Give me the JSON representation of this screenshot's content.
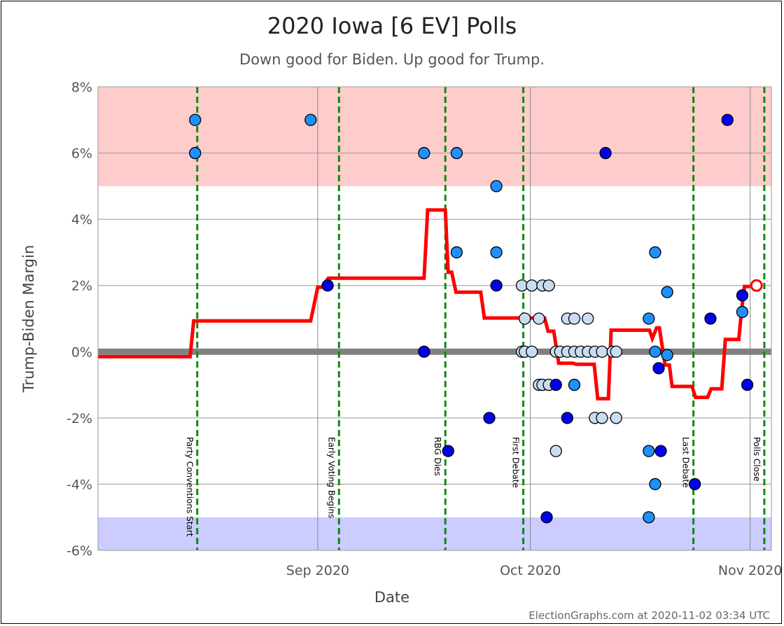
{
  "chart_data": {
    "type": "scatter",
    "title": "2020 Iowa [6 EV] Polls",
    "subtitle": "Down good for Biden. Up good for Trump.",
    "xlabel": "Date",
    "ylabel": "Trump-Biden Margin",
    "credit": "ElectionGraphs.com at 2020-11-02 03:34 UTC",
    "xlim": [
      "2020-08-01",
      "2020-11-04"
    ],
    "ylim": [
      -6,
      8
    ],
    "y_ticks": [
      {
        "value": 8,
        "label": "8%"
      },
      {
        "value": 6,
        "label": "6%"
      },
      {
        "value": 4,
        "label": "4%"
      },
      {
        "value": 2,
        "label": "2%"
      },
      {
        "value": 0,
        "label": "0%"
      },
      {
        "value": -2,
        "label": "-2%"
      },
      {
        "value": -4,
        "label": "-4%"
      },
      {
        "value": -6,
        "label": "-6%"
      }
    ],
    "x_ticks": [
      {
        "date": "2020-09-01",
        "label": "Sep 2020"
      },
      {
        "date": "2020-10-01",
        "label": "Oct 2020"
      },
      {
        "date": "2020-11-01",
        "label": "Nov 2020"
      }
    ],
    "bands": [
      {
        "from": 5,
        "to": 8,
        "color": "#ffcccc"
      },
      {
        "from": -6,
        "to": -5,
        "color": "#ccccff"
      }
    ],
    "events": [
      {
        "date": "2020-08-15",
        "label": "Party Conventions Start"
      },
      {
        "date": "2020-09-04",
        "label": "Early Voting Begins"
      },
      {
        "date": "2020-09-19",
        "label": "RBG Dies"
      },
      {
        "date": "2020-09-30",
        "label": "First Debate"
      },
      {
        "date": "2020-10-24",
        "label": "Last Debate"
      },
      {
        "date": "2020-11-03",
        "label": "Polls Close"
      }
    ],
    "average_line": {
      "color": "#ff0000",
      "points": [
        [
          "2020-08-01",
          -0.15
        ],
        [
          "2020-08-14",
          -0.15
        ],
        [
          "2020-08-14.5",
          0.93
        ],
        [
          "2020-08-31",
          0.93
        ],
        [
          "2020-09-01",
          1.95
        ],
        [
          "2020-09-01.6",
          1.95
        ],
        [
          "2020-09-02.5",
          2.22
        ],
        [
          "2020-09-16",
          2.22
        ],
        [
          "2020-09-16.5",
          4.28
        ],
        [
          "2020-09-19",
          4.28
        ],
        [
          "2020-09-19.4",
          2.4
        ],
        [
          "2020-09-19.9",
          2.4
        ],
        [
          "2020-09-20.5",
          1.8
        ],
        [
          "2020-09-24",
          1.8
        ],
        [
          "2020-09-24.5",
          1.02
        ],
        [
          "2020-10-03",
          1.02
        ],
        [
          "2020-10-03.5",
          0.62
        ],
        [
          "2020-10-04.3",
          0.62
        ],
        [
          "2020-10-05",
          -0.35
        ],
        [
          "2020-10-07",
          -0.35
        ],
        [
          "2020-10-07.5",
          -0.38
        ],
        [
          "2020-10-10",
          -0.38
        ],
        [
          "2020-10-10.5",
          -1.42
        ],
        [
          "2020-10-12",
          -1.42
        ],
        [
          "2020-10-12.4",
          0.65
        ],
        [
          "2020-10-17.8",
          0.65
        ],
        [
          "2020-10-18.2",
          0.4
        ],
        [
          "2020-10-18.8",
          0.72
        ],
        [
          "2020-10-19.2",
          0.72
        ],
        [
          "2020-10-20",
          -0.4
        ],
        [
          "2020-10-20.6",
          -0.4
        ],
        [
          "2020-10-21",
          -1.05
        ],
        [
          "2020-10-23.8",
          -1.05
        ],
        [
          "2020-10-24.3",
          -1.38
        ],
        [
          "2020-10-26",
          -1.38
        ],
        [
          "2020-10-26.5",
          -1.12
        ],
        [
          "2020-10-28",
          -1.12
        ],
        [
          "2020-10-28.5",
          0.37
        ],
        [
          "2020-10-30.4",
          0.37
        ],
        [
          "2020-10-30.8",
          1.27
        ],
        [
          "2020-10-31.2",
          1.97
        ],
        [
          "2020-11-01",
          1.97
        ]
      ],
      "projection": {
        "date": "2020-11-01.9",
        "value": 2.0
      }
    },
    "polls": [
      {
        "date": "2020-08-14.7",
        "value": 7,
        "color": "#1e90ff"
      },
      {
        "date": "2020-08-14.7",
        "value": 6,
        "color": "#1e90ff"
      },
      {
        "date": "2020-08-31.0",
        "value": 7,
        "color": "#1e90ff"
      },
      {
        "date": "2020-09-02.4",
        "value": 2,
        "color": "#0000ee"
      },
      {
        "date": "2020-09-16.0",
        "value": 6,
        "color": "#1e90ff"
      },
      {
        "date": "2020-09-16.0",
        "value": 0,
        "color": "#0000ee"
      },
      {
        "date": "2020-09-19.4",
        "value": -3,
        "color": "#0000ee"
      },
      {
        "date": "2020-09-20.6",
        "value": 6,
        "color": "#1e90ff"
      },
      {
        "date": "2020-09-20.6",
        "value": 3,
        "color": "#1e90ff"
      },
      {
        "date": "2020-09-25.2",
        "value": -2,
        "color": "#0000ee"
      },
      {
        "date": "2020-09-26.2",
        "value": 5,
        "color": "#1e90ff"
      },
      {
        "date": "2020-09-26.2",
        "value": 3,
        "color": "#1e90ff"
      },
      {
        "date": "2020-09-26.2",
        "value": 2,
        "color": "#0000ee"
      },
      {
        "date": "2020-09-29.8",
        "value": 2,
        "color": "#c8ddf2"
      },
      {
        "date": "2020-09-29.8",
        "value": 0,
        "color": "#c8ddf2"
      },
      {
        "date": "2020-09-30.2",
        "value": 1,
        "color": "#c8ddf2"
      },
      {
        "date": "2020-09-30.2",
        "value": 0,
        "color": "#c8ddf2"
      },
      {
        "date": "2020-10-01.2",
        "value": 2,
        "color": "#c8ddf2"
      },
      {
        "date": "2020-10-01.2",
        "value": 0,
        "color": "#c8ddf2"
      },
      {
        "date": "2020-10-02.2",
        "value": 1,
        "color": "#c8ddf2"
      },
      {
        "date": "2020-10-02.2",
        "value": -1,
        "color": "#c8ddf2"
      },
      {
        "date": "2020-10-02.7",
        "value": 2,
        "color": "#c8ddf2"
      },
      {
        "date": "2020-10-02.7",
        "value": -1,
        "color": "#c8ddf2"
      },
      {
        "date": "2020-10-03.6",
        "value": 2,
        "color": "#c8ddf2"
      },
      {
        "date": "2020-10-03.6",
        "value": -1,
        "color": "#c8ddf2"
      },
      {
        "date": "2020-10-03.3",
        "value": -5,
        "color": "#0000ee"
      },
      {
        "date": "2020-10-04.6",
        "value": 0,
        "color": "#c8ddf2"
      },
      {
        "date": "2020-10-04.6",
        "value": -3,
        "color": "#c8ddf2"
      },
      {
        "date": "2020-10-04.6",
        "value": -1,
        "color": "#0000ee"
      },
      {
        "date": "2020-10-05.2",
        "value": 0,
        "color": "#c8ddf2"
      },
      {
        "date": "2020-10-06.2",
        "value": 1,
        "color": "#c8ddf2"
      },
      {
        "date": "2020-10-06.2",
        "value": 0,
        "color": "#c8ddf2"
      },
      {
        "date": "2020-10-06.2",
        "value": -2,
        "color": "#0000ee"
      },
      {
        "date": "2020-10-07.2",
        "value": 1,
        "color": "#c8ddf2"
      },
      {
        "date": "2020-10-07.2",
        "value": 0,
        "color": "#c8ddf2"
      },
      {
        "date": "2020-10-07.2",
        "value": -1,
        "color": "#1e90ff"
      },
      {
        "date": "2020-10-08.1",
        "value": 0,
        "color": "#c8ddf2"
      },
      {
        "date": "2020-10-09.1",
        "value": 1,
        "color": "#c8ddf2"
      },
      {
        "date": "2020-10-09.1",
        "value": 0,
        "color": "#c8ddf2"
      },
      {
        "date": "2020-10-10.1",
        "value": 0,
        "color": "#c8ddf2"
      },
      {
        "date": "2020-10-10.1",
        "value": -2,
        "color": "#c8ddf2"
      },
      {
        "date": "2020-10-11.1",
        "value": 0,
        "color": "#c8ddf2"
      },
      {
        "date": "2020-10-11.1",
        "value": -2,
        "color": "#c8ddf2"
      },
      {
        "date": "2020-10-11.6",
        "value": 6,
        "color": "#0000ee"
      },
      {
        "date": "2020-10-12.6",
        "value": 0,
        "color": "#c8ddf2"
      },
      {
        "date": "2020-10-13.1",
        "value": 0,
        "color": "#c8ddf2"
      },
      {
        "date": "2020-10-13.1",
        "value": -2,
        "color": "#c8ddf2"
      },
      {
        "date": "2020-10-17.7",
        "value": 1,
        "color": "#1e90ff"
      },
      {
        "date": "2020-10-17.7",
        "value": -3,
        "color": "#1e90ff"
      },
      {
        "date": "2020-10-17.7",
        "value": -5,
        "color": "#1e90ff"
      },
      {
        "date": "2020-10-18.6",
        "value": 3,
        "color": "#1e90ff"
      },
      {
        "date": "2020-10-18.6",
        "value": 0,
        "color": "#1e90ff"
      },
      {
        "date": "2020-10-18.6",
        "value": -4,
        "color": "#1e90ff"
      },
      {
        "date": "2020-10-19.1",
        "value": -0.5,
        "color": "#0000ee"
      },
      {
        "date": "2020-10-19.4",
        "value": -3,
        "color": "#0000ee"
      },
      {
        "date": "2020-10-20.3",
        "value": 1.8,
        "color": "#1e90ff"
      },
      {
        "date": "2020-10-20.3",
        "value": -0.1,
        "color": "#1e90ff"
      },
      {
        "date": "2020-10-24.2",
        "value": -4,
        "color": "#0000ee"
      },
      {
        "date": "2020-10-26.4",
        "value": 1,
        "color": "#0000ee"
      },
      {
        "date": "2020-10-28.8",
        "value": 7,
        "color": "#0000ee"
      },
      {
        "date": "2020-10-30.9",
        "value": 1.7,
        "color": "#0000ee"
      },
      {
        "date": "2020-10-30.9",
        "value": 1.2,
        "color": "#1e90ff"
      },
      {
        "date": "2020-10-31.6",
        "value": -1,
        "color": "#0000ee"
      }
    ]
  }
}
